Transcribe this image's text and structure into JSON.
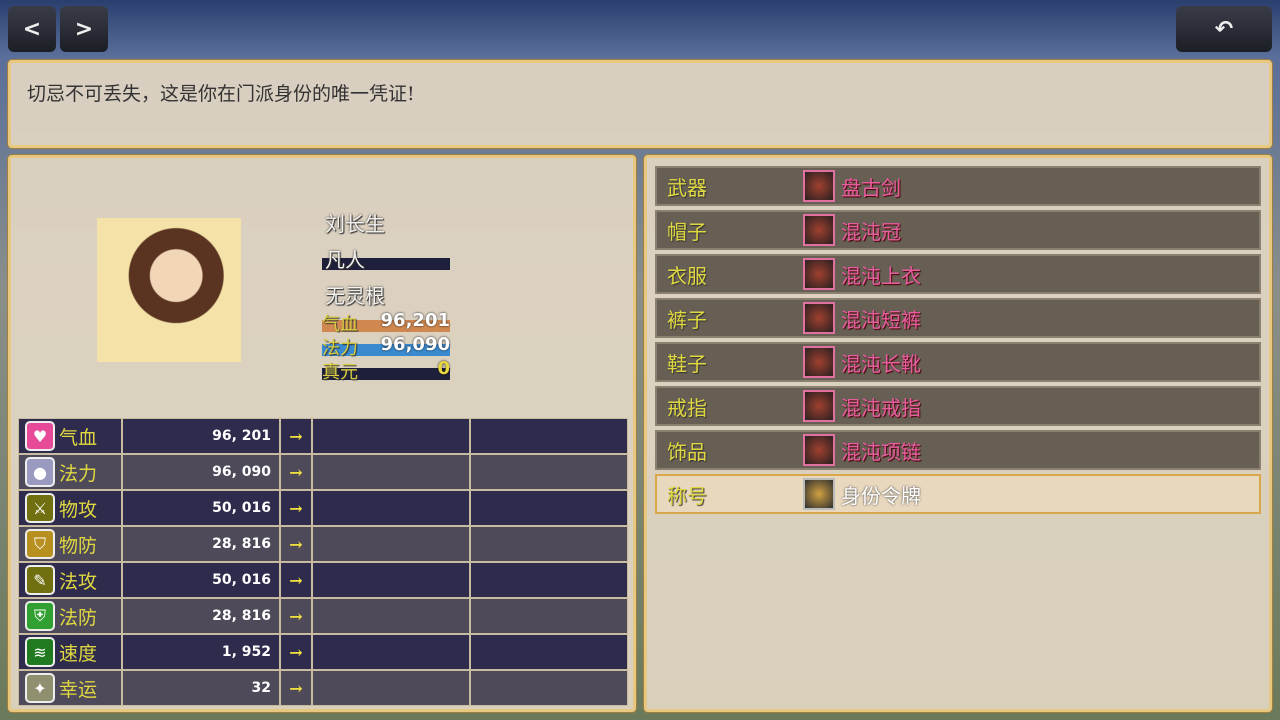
{
  "nav": {
    "prev": "<",
    "next": ">",
    "back_icon": "undo-arrow-icon"
  },
  "message": "切忌不可丢失，这是你在门派身份的唯一凭证!",
  "character": {
    "name": "刘长生",
    "realm": "凡人",
    "root": "无灵根",
    "hp": {
      "label": "气血",
      "value": "96,201",
      "fill": 1.0,
      "color": "#d08850"
    },
    "mp": {
      "label": "法力",
      "value": "96,090",
      "fill": 1.0,
      "color": "#3a8ad0"
    },
    "zhenyuan": {
      "label": "真元",
      "value": "0",
      "fill": 0
    }
  },
  "stats": [
    {
      "icon": "heart-icon",
      "glyph": "♥",
      "color": "#e84a9a",
      "label": "气血",
      "value": "96, 201",
      "arrow": "→"
    },
    {
      "icon": "orb-icon",
      "glyph": "●",
      "color": "#9a9ac0",
      "label": "法力",
      "value": "96, 090",
      "arrow": "→"
    },
    {
      "icon": "sword-icon",
      "glyph": "⚔",
      "color": "#707010",
      "label": "物攻",
      "value": "50, 016",
      "arrow": "→"
    },
    {
      "icon": "shield-icon",
      "glyph": "⛉",
      "color": "#b89020",
      "label": "物防",
      "value": "28, 816",
      "arrow": "→"
    },
    {
      "icon": "staff-icon",
      "glyph": "✎",
      "color": "#707010",
      "label": "法攻",
      "value": "50, 016",
      "arrow": "→"
    },
    {
      "icon": "magic-shield-icon",
      "glyph": "⛨",
      "color": "#30a030",
      "label": "法防",
      "value": "28, 816",
      "arrow": "→"
    },
    {
      "icon": "boot-icon",
      "glyph": "≋",
      "color": "#207a20",
      "label": "速度",
      "value": "1, 952",
      "arrow": "→"
    },
    {
      "icon": "clover-icon",
      "glyph": "✦",
      "color": "#909070",
      "label": "幸运",
      "value": "32",
      "arrow": "→"
    }
  ],
  "equipment": [
    {
      "slot": "武器",
      "item": "盘古剑",
      "icon": "sword-item-icon"
    },
    {
      "slot": "帽子",
      "item": "混沌冠",
      "icon": "crown-item-icon"
    },
    {
      "slot": "衣服",
      "item": "混沌上衣",
      "icon": "robe-item-icon"
    },
    {
      "slot": "裤子",
      "item": "混沌短裤",
      "icon": "pants-item-icon"
    },
    {
      "slot": "鞋子",
      "item": "混沌长靴",
      "icon": "boots-item-icon"
    },
    {
      "slot": "戒指",
      "item": "混沌戒指",
      "icon": "ring-item-icon"
    },
    {
      "slot": "饰品",
      "item": "混沌项链",
      "icon": "necklace-item-icon"
    },
    {
      "slot": "称号",
      "item": "身份令牌",
      "icon": "token-item-icon",
      "selected": true
    }
  ]
}
